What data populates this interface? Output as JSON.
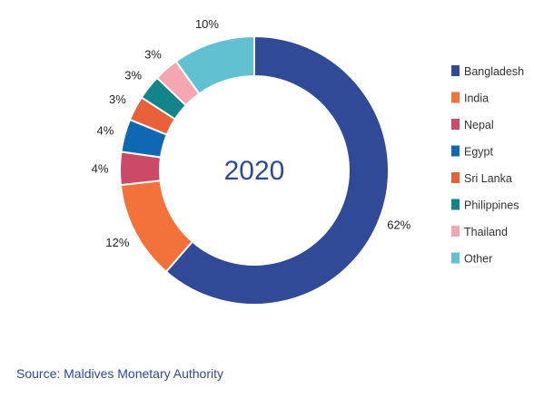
{
  "chart_data": {
    "type": "pie",
    "center_label": "2020",
    "categories": [
      "Bangladesh",
      "India",
      "Nepal",
      "Egypt",
      "Sri Lanka",
      "Philippines",
      "Thailand",
      "Other"
    ],
    "values": [
      62,
      12,
      4,
      4,
      3,
      3,
      3,
      10
    ],
    "value_labels": [
      "62%",
      "12%",
      "4%",
      "4%",
      "3%",
      "3%",
      "3%",
      "10%"
    ],
    "colors": [
      "#304a97",
      "#f3713a",
      "#cc4a66",
      "#1168b2",
      "#e8603c",
      "#138489",
      "#f4a7b0",
      "#62c1d1"
    ],
    "legend_position": "right",
    "donut": true
  },
  "source": "Source: Maldives Monetary Authority"
}
